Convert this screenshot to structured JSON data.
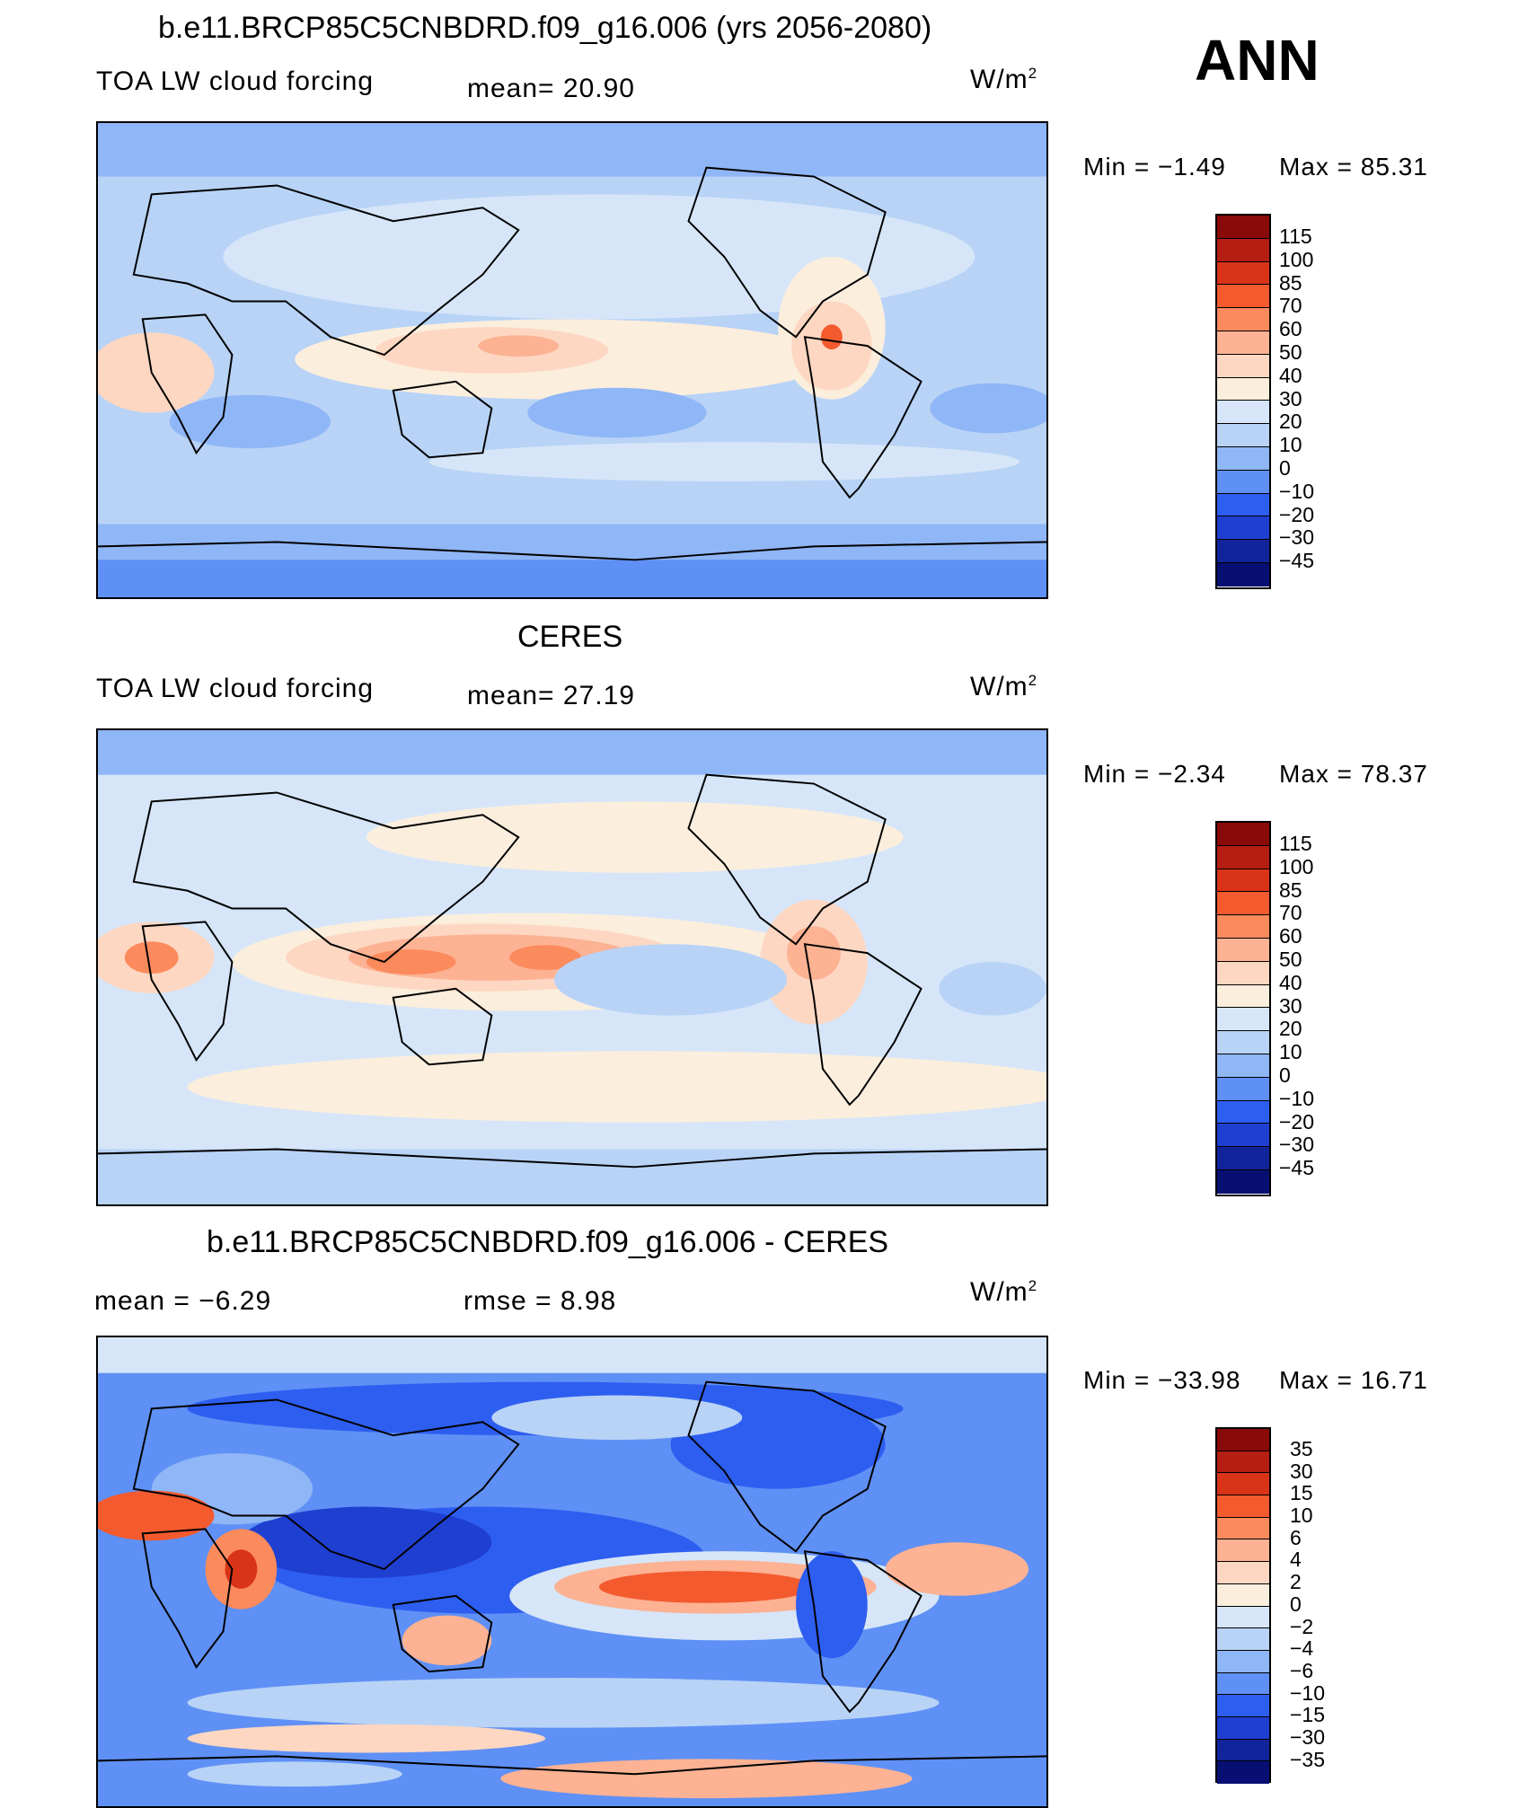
{
  "season": "ANN",
  "panels": [
    {
      "id": "model",
      "title": "b.e11.BRCP85C5CNBDRD.f09_g16.006 (yrs 2056-2080)",
      "left_label": "TOA LW cloud forcing",
      "center_label": "mean=  20.90",
      "units": "W/m",
      "units_sup": "2",
      "minmax_min": "Min =  −1.49",
      "minmax_max": "Max =   85.31",
      "colorbar_levels": [
        "115",
        "100",
        "85",
        "70",
        "60",
        "50",
        "40",
        "30",
        "20",
        "10",
        "0",
        "−10",
        "−20",
        "−30",
        "−45"
      ]
    },
    {
      "id": "obs",
      "title": "CERES",
      "left_label": "TOA LW cloud forcing",
      "center_label": "mean=  27.19",
      "units": "W/m",
      "units_sup": "2",
      "minmax_min": "Min =  −2.34",
      "minmax_max": "Max =   78.37",
      "colorbar_levels": [
        "115",
        "100",
        "85",
        "70",
        "60",
        "50",
        "40",
        "30",
        "20",
        "10",
        "0",
        "−10",
        "−20",
        "−30",
        "−45"
      ]
    },
    {
      "id": "diff",
      "title": "b.e11.BRCP85C5CNBDRD.f09_g16.006 - CERES",
      "left_label": "mean =  −6.29",
      "center_label": "rmse =   8.98",
      "units": "W/m",
      "units_sup": "2",
      "minmax_min": "Min = −33.98",
      "minmax_max": "Max =   16.71",
      "colorbar_levels": [
        "35",
        "30",
        "15",
        "10",
        "6",
        "4",
        "2",
        "0",
        "−2",
        "−4",
        "−6",
        "−10",
        "−15",
        "−30",
        "−35"
      ]
    }
  ],
  "colorbar_colors": [
    "#8a0a0a",
    "#b51e12",
    "#d93418",
    "#f35a2e",
    "#fb8a5c",
    "#fcb293",
    "#fdd7c2",
    "#fbeedd",
    "#d6e6f8",
    "#b8d3f6",
    "#8fb6f6",
    "#5f90f5",
    "#2e5ef0",
    "#1f3fd0",
    "#12249b",
    "#070f72"
  ]
}
